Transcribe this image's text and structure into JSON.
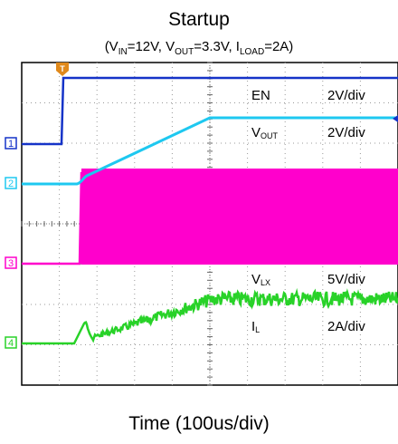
{
  "chart_data": {
    "type": "line",
    "title": "Startup",
    "subtitle": {
      "prefix": "(V",
      "vin_sub": "IN",
      "vin_val": "=12V, V",
      "vout_sub": "OUT",
      "vout_val": "=3.3V, I",
      "iload_sub": "LOAD",
      "iload_val": "=2A)"
    },
    "xlabel": "Time (100us/div)",
    "x_divisions": 10,
    "y_divisions": 8,
    "channels": [
      {
        "marker": "T",
        "name": "EN",
        "name_sub": "",
        "scale": "2V/div",
        "color": "#1533c8"
      },
      {
        "marker": "1",
        "name": "V",
        "name_sub": "OUT",
        "scale": "2V/div",
        "color": "#1ec8f0"
      },
      {
        "marker": "2",
        "name": "V",
        "name_sub": "LX",
        "scale": "5V/div",
        "color": "#ff00cc"
      },
      {
        "marker": "3",
        "name": "I",
        "name_sub": "L",
        "scale": "2A/div",
        "color": "#28d228"
      },
      {
        "marker": "4",
        "name": "",
        "name_sub": "",
        "scale": "",
        "color": "#1a1a1a"
      }
    ],
    "channel_markers": [
      "1",
      "2",
      "3",
      "4"
    ],
    "trigger_marker": "T",
    "colors": {
      "en": "#1533c8",
      "vout": "#1ec8f0",
      "vlx": "#ff00cc",
      "il": "#28d228",
      "grid": "#9a9a9a",
      "frame": "#000000"
    }
  }
}
